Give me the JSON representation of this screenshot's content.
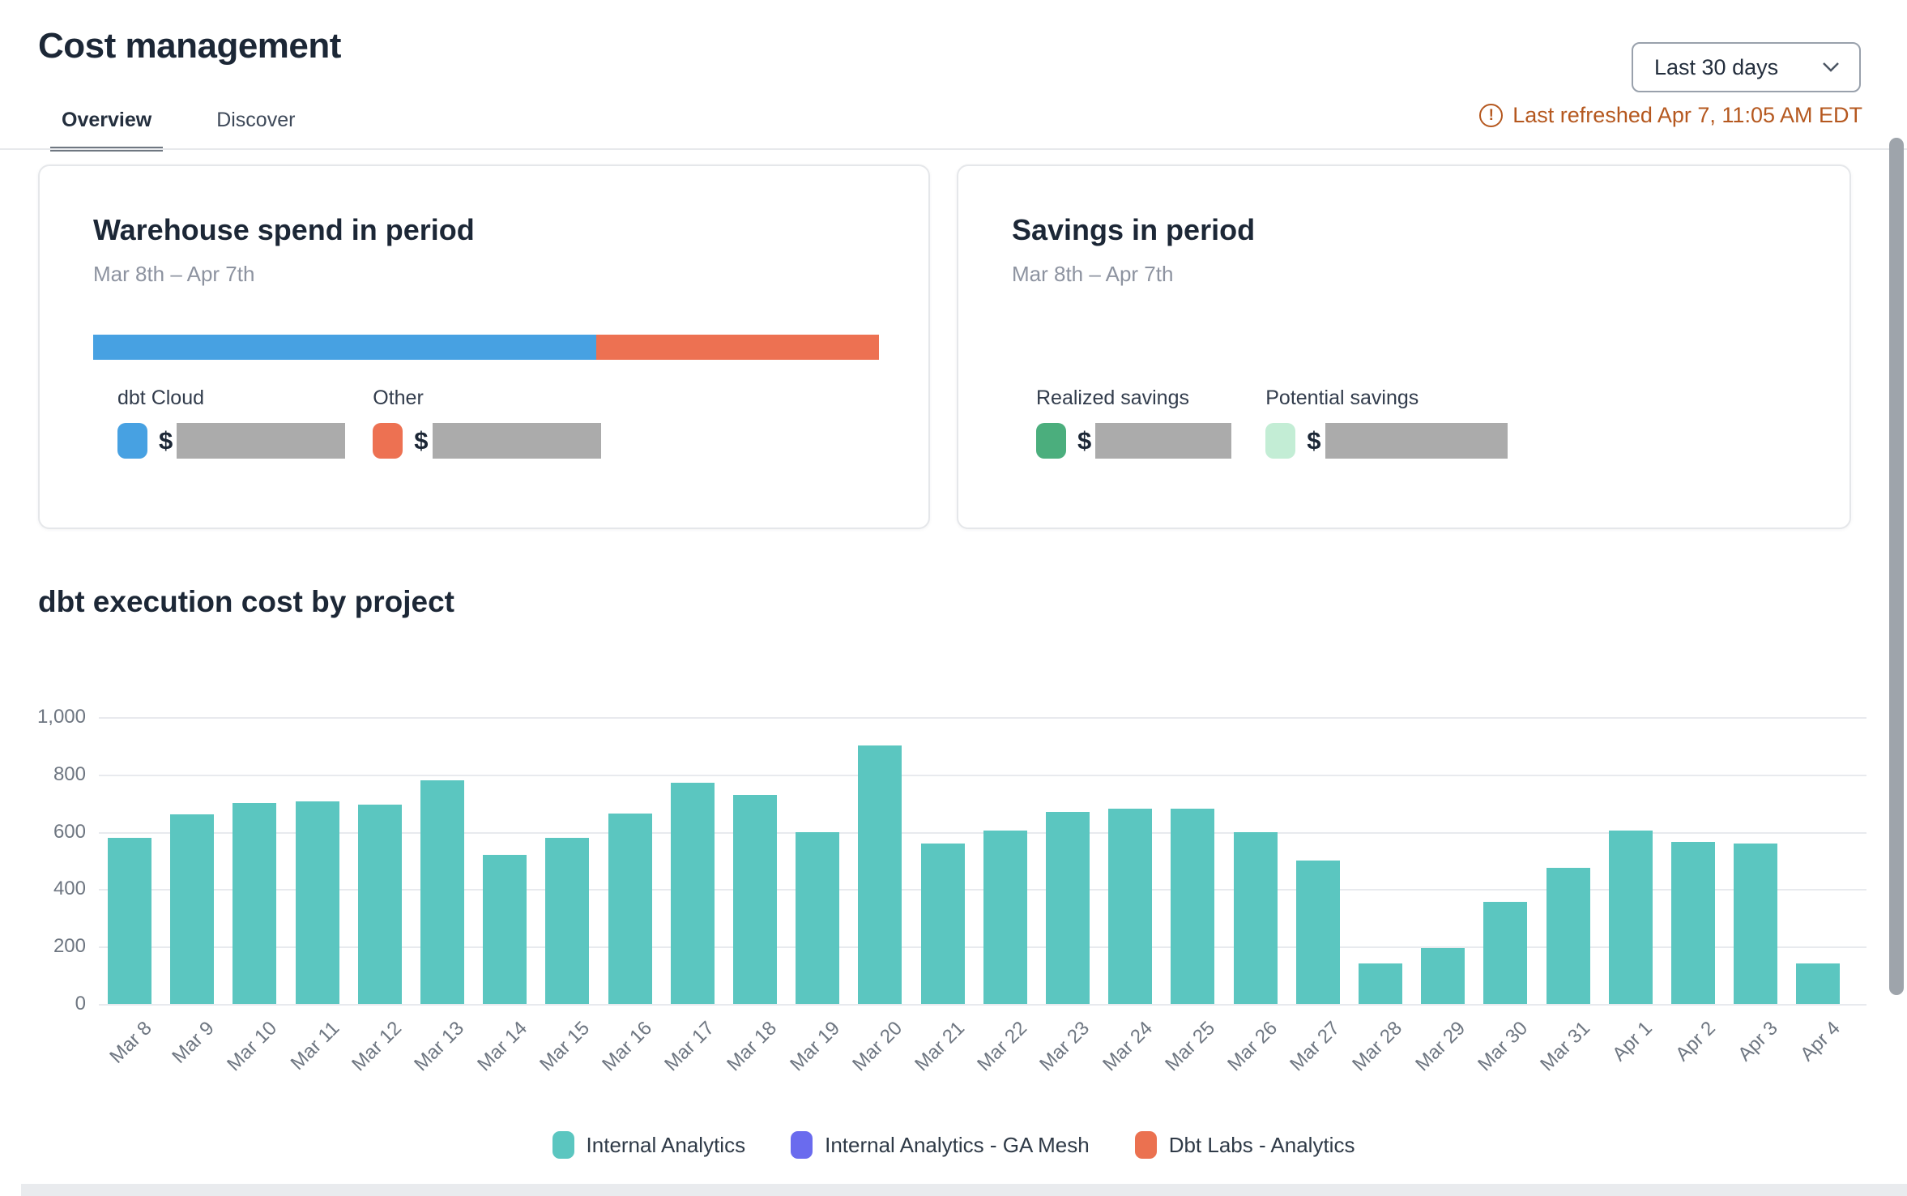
{
  "colors": {
    "dbt_cloud_blue": "#47A1E2",
    "other_orange": "#ED7152",
    "realized_green": "#4BAE7D",
    "potential_green": "#C3EDD5",
    "redacted_gray": "#ABABAB",
    "bar_teal": "#5BC6C0",
    "ga_mesh_indigo": "#6A6BEE",
    "dbt_labs_orange": "#EB7150",
    "refresh_orange": "#B5581F"
  },
  "header": {
    "title": "Cost management",
    "tabs": [
      {
        "label": "Overview",
        "active": true
      },
      {
        "label": "Discover",
        "active": false
      }
    ],
    "date_range_selector": {
      "value": "Last 30 days"
    },
    "last_refreshed": "Last refreshed Apr 7, 11:05 AM EDT"
  },
  "cards": {
    "warehouse_spend": {
      "title": "Warehouse spend in period",
      "subtitle": "Mar 8th – Apr 7th",
      "segments": [
        {
          "label": "dbt Cloud",
          "pct": 64,
          "currency": "$",
          "value_redacted": true
        },
        {
          "label": "Other",
          "pct": 36,
          "currency": "$",
          "value_redacted": true
        }
      ]
    },
    "savings": {
      "title": "Savings in period",
      "subtitle": "Mar 8th – Apr 7th",
      "items": [
        {
          "label": "Realized savings",
          "currency": "$",
          "value_redacted": true
        },
        {
          "label": "Potential savings",
          "currency": "$",
          "value_redacted": true
        }
      ]
    }
  },
  "section": {
    "title": "dbt execution cost by project"
  },
  "chart_data": {
    "type": "bar",
    "title": "dbt execution cost by project",
    "x": [
      "Mar 8",
      "Mar 9",
      "Mar 10",
      "Mar 11",
      "Mar 12",
      "Mar 13",
      "Mar 14",
      "Mar 15",
      "Mar 16",
      "Mar 17",
      "Mar 18",
      "Mar 19",
      "Mar 20",
      "Mar 21",
      "Mar 22",
      "Mar 23",
      "Mar 24",
      "Mar 25",
      "Mar 26",
      "Mar 27",
      "Mar 28",
      "Mar 29",
      "Mar 30",
      "Mar 31",
      "Apr 1",
      "Apr 2",
      "Apr 3",
      "Apr 4"
    ],
    "series": [
      {
        "name": "Internal Analytics",
        "color": "#5BC6C0",
        "values": [
          580,
          660,
          700,
          705,
          695,
          780,
          520,
          580,
          665,
          770,
          730,
          600,
          900,
          560,
          605,
          670,
          680,
          680,
          600,
          500,
          140,
          195,
          355,
          475,
          605,
          565,
          560,
          140
        ]
      },
      {
        "name": "Internal Analytics - GA Mesh",
        "color": "#6A6BEE",
        "values": [
          0,
          0,
          0,
          0,
          0,
          0,
          0,
          0,
          0,
          0,
          0,
          0,
          0,
          0,
          0,
          0,
          0,
          0,
          0,
          0,
          0,
          0,
          0,
          0,
          0,
          0,
          0,
          0
        ]
      },
      {
        "name": "Dbt Labs - Analytics",
        "color": "#EB7150",
        "values": [
          0,
          0,
          0,
          0,
          0,
          0,
          0,
          0,
          0,
          0,
          0,
          0,
          0,
          0,
          0,
          0,
          0,
          0,
          0,
          0,
          0,
          0,
          0,
          0,
          0,
          0,
          0,
          0
        ]
      }
    ],
    "xlabel": "",
    "ylabel": "",
    "ylim": [
      0,
      1000
    ],
    "yticks": [
      "0",
      "200",
      "400",
      "600",
      "800",
      "1,000"
    ],
    "grid": true,
    "legend_position": "bottom"
  }
}
